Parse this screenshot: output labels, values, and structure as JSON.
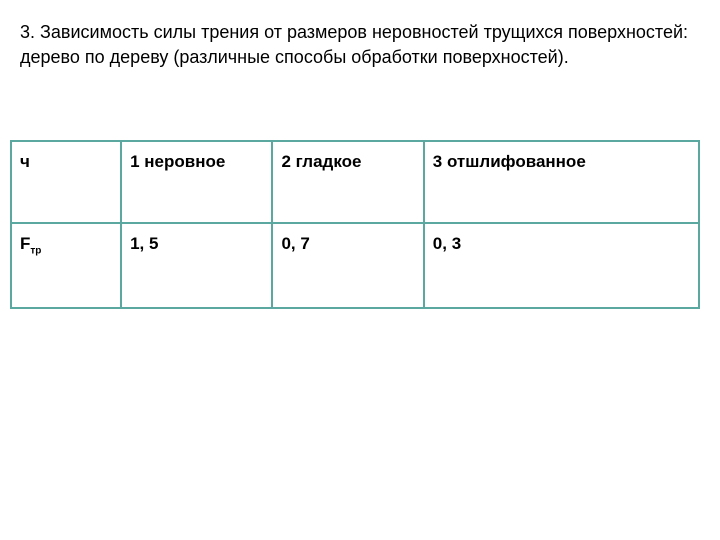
{
  "title": "  3. Зависимость силы трения от размеров неровностей трущихся поверхностей: дерево по дереву (различные способы обработки поверхностей).",
  "table": {
    "border_color": "#5ba8a0",
    "header_row_label": "ч",
    "data_row_label": "F",
    "data_row_label_sub": "тр",
    "columns": [
      "1 неровное",
      "2 гладкое",
      "3 отшлифованное"
    ],
    "values": [
      "1, 5",
      "0, 7",
      "0, 3"
    ]
  },
  "styling": {
    "background_color": "#ffffff",
    "text_color": "#000000",
    "font_size_title": 18,
    "font_size_cell": 17,
    "font_size_label": 15
  }
}
